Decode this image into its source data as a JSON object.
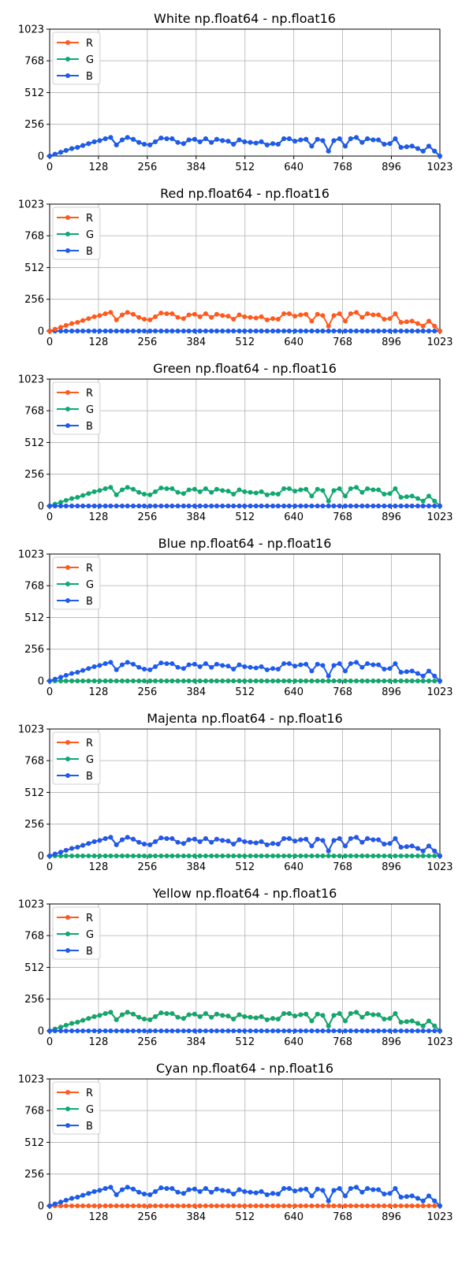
{
  "colors": {
    "R": "#ff5a1e",
    "G": "#10a870",
    "B": "#1e5aee",
    "grid": "#b0b0b0",
    "axis": "#000000",
    "legend_border": "#d0d0d0"
  },
  "shared": {
    "x": [
      0,
      14,
      29,
      43,
      58,
      73,
      87,
      102,
      117,
      131,
      146,
      160,
      175,
      190,
      204,
      219,
      234,
      248,
      263,
      277,
      292,
      307,
      321,
      336,
      351,
      365,
      380,
      394,
      409,
      424,
      438,
      453,
      468,
      482,
      497,
      511,
      526,
      541,
      555,
      570,
      585,
      599,
      614,
      628,
      643,
      658,
      672,
      687,
      702,
      716,
      731,
      745,
      760,
      775,
      789,
      804,
      819,
      833,
      848,
      862,
      877,
      892,
      906,
      921,
      936,
      950,
      965,
      979,
      994,
      1009,
      1023
    ],
    "diff": [
      0,
      15,
      30,
      45,
      60,
      70,
      85,
      100,
      115,
      125,
      140,
      150,
      90,
      130,
      150,
      135,
      110,
      95,
      90,
      115,
      145,
      140,
      140,
      110,
      100,
      130,
      135,
      115,
      140,
      110,
      135,
      125,
      120,
      95,
      130,
      115,
      110,
      105,
      115,
      90,
      100,
      95,
      140,
      140,
      120,
      130,
      135,
      80,
      135,
      125,
      40,
      125,
      140,
      80,
      140,
      150,
      110,
      140,
      130,
      130,
      95,
      100,
      140,
      70,
      75,
      80,
      60,
      40,
      80,
      40,
      0
    ],
    "zero": [
      0,
      0,
      0,
      0,
      0,
      0,
      0,
      0,
      0,
      0,
      0,
      0,
      0,
      0,
      0,
      0,
      0,
      0,
      0,
      0,
      0,
      0,
      0,
      0,
      0,
      0,
      0,
      0,
      0,
      0,
      0,
      0,
      0,
      0,
      0,
      0,
      0,
      0,
      0,
      0,
      0,
      0,
      0,
      0,
      0,
      0,
      0,
      0,
      0,
      0,
      0,
      0,
      0,
      0,
      0,
      0,
      0,
      0,
      0,
      0,
      0,
      0,
      0,
      0,
      0,
      0,
      0,
      0,
      0,
      0,
      0
    ]
  },
  "chart_data": [
    {
      "type": "line",
      "title": "White np.float64 - np.float16",
      "xlim": [
        0,
        1023
      ],
      "ylim": [
        0,
        1023
      ],
      "xticks": [
        0,
        128,
        256,
        384,
        512,
        640,
        768,
        896,
        1023
      ],
      "yticks": [
        0,
        256,
        512,
        768,
        1023
      ],
      "grid": true,
      "legend": "top-left",
      "series": [
        {
          "name": "R",
          "values": "diff"
        },
        {
          "name": "G",
          "values": "diff"
        },
        {
          "name": "B",
          "values": "diff"
        }
      ]
    },
    {
      "type": "line",
      "title": "Red np.float64 - np.float16",
      "xlim": [
        0,
        1023
      ],
      "ylim": [
        0,
        1023
      ],
      "xticks": [
        0,
        128,
        256,
        384,
        512,
        640,
        768,
        896,
        1023
      ],
      "yticks": [
        0,
        256,
        512,
        768,
        1023
      ],
      "grid": true,
      "legend": "top-left",
      "series": [
        {
          "name": "G",
          "values": "zero"
        },
        {
          "name": "B",
          "values": "zero"
        },
        {
          "name": "R",
          "values": "diff"
        }
      ]
    },
    {
      "type": "line",
      "title": "Green np.float64 - np.float16",
      "xlim": [
        0,
        1023
      ],
      "ylim": [
        0,
        1023
      ],
      "xticks": [
        0,
        128,
        256,
        384,
        512,
        640,
        768,
        896,
        1023
      ],
      "yticks": [
        0,
        256,
        512,
        768,
        1023
      ],
      "grid": true,
      "legend": "top-left",
      "series": [
        {
          "name": "R",
          "values": "zero"
        },
        {
          "name": "G",
          "values": "diff"
        },
        {
          "name": "B",
          "values": "zero"
        }
      ]
    },
    {
      "type": "line",
      "title": "Blue np.float64 - np.float16",
      "xlim": [
        0,
        1023
      ],
      "ylim": [
        0,
        1023
      ],
      "xticks": [
        0,
        128,
        256,
        384,
        512,
        640,
        768,
        896,
        1023
      ],
      "yticks": [
        0,
        256,
        512,
        768,
        1023
      ],
      "grid": true,
      "legend": "top-left",
      "series": [
        {
          "name": "R",
          "values": "zero"
        },
        {
          "name": "G",
          "values": "zero"
        },
        {
          "name": "B",
          "values": "diff"
        }
      ]
    },
    {
      "type": "line",
      "title": "Majenta np.float64 - np.float16",
      "xlim": [
        0,
        1023
      ],
      "ylim": [
        0,
        1023
      ],
      "xticks": [
        0,
        128,
        256,
        384,
        512,
        640,
        768,
        896,
        1023
      ],
      "yticks": [
        0,
        256,
        512,
        768,
        1023
      ],
      "grid": true,
      "legend": "top-left",
      "series": [
        {
          "name": "R",
          "values": "diff"
        },
        {
          "name": "G",
          "values": "zero"
        },
        {
          "name": "B",
          "values": "diff"
        }
      ]
    },
    {
      "type": "line",
      "title": "Yellow np.float64 - np.float16",
      "xlim": [
        0,
        1023
      ],
      "ylim": [
        0,
        1023
      ],
      "xticks": [
        0,
        128,
        256,
        384,
        512,
        640,
        768,
        896,
        1023
      ],
      "yticks": [
        0,
        256,
        512,
        768,
        1023
      ],
      "grid": true,
      "legend": "top-left",
      "series": [
        {
          "name": "R",
          "values": "diff"
        },
        {
          "name": "G",
          "values": "diff"
        },
        {
          "name": "B",
          "values": "zero"
        }
      ]
    },
    {
      "type": "line",
      "title": "Cyan np.float64 - np.float16",
      "xlim": [
        0,
        1023
      ],
      "ylim": [
        0,
        1023
      ],
      "xticks": [
        0,
        128,
        256,
        384,
        512,
        640,
        768,
        896,
        1023
      ],
      "yticks": [
        0,
        256,
        512,
        768,
        1023
      ],
      "grid": true,
      "legend": "top-left",
      "series": [
        {
          "name": "R",
          "values": "zero"
        },
        {
          "name": "G",
          "values": "diff"
        },
        {
          "name": "B",
          "values": "diff"
        }
      ]
    }
  ]
}
